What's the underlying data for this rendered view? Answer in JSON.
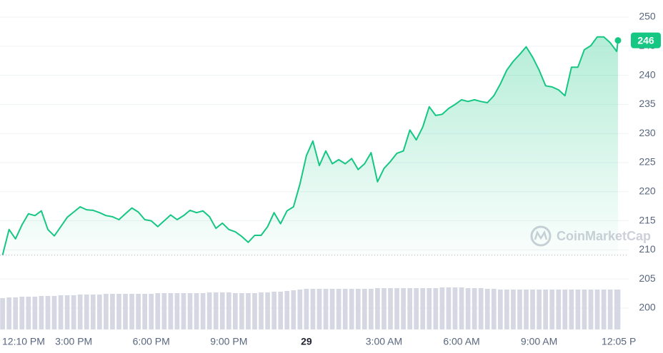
{
  "chart_data": {
    "type": "area",
    "watermark": "CoinMarketCap",
    "x": [
      0.25,
      0.5,
      0.75,
      1.0,
      1.25,
      1.5,
      1.75,
      2.0,
      2.25,
      2.5,
      2.75,
      3.0,
      3.25,
      3.5,
      3.75,
      4.0,
      4.25,
      4.5,
      4.75,
      5.0,
      5.25,
      5.5,
      5.75,
      6.0,
      6.25,
      6.5,
      6.75,
      7.0,
      7.25,
      7.5,
      7.75,
      8.0,
      8.25,
      8.5,
      8.75,
      9.0,
      9.25,
      9.5,
      9.75,
      10.0,
      10.25,
      10.5,
      10.75,
      11.0,
      11.25,
      11.5,
      11.75,
      12.0,
      12.25,
      12.5,
      12.75,
      13.0,
      13.25,
      13.5,
      13.75,
      14.0,
      14.25,
      14.5,
      14.75,
      15.0,
      15.25,
      15.5,
      15.75,
      16.0,
      16.25,
      16.5,
      16.75,
      17.0,
      17.25,
      17.5,
      17.75,
      18.0,
      18.25,
      18.5,
      18.75,
      19.0,
      19.25,
      19.5,
      19.75,
      20.0,
      20.25,
      20.5,
      20.75,
      21.0,
      21.25,
      21.5,
      21.75,
      22.0,
      22.25,
      22.5,
      22.75,
      23.0,
      23.25,
      23.5,
      23.75,
      24.0,
      24.05
    ],
    "series": [
      {
        "color": "#16c784",
        "down_color": "#ea3943",
        "values": [
          209.1,
          213.5,
          211.9,
          214.3,
          216.2,
          215.9,
          216.7,
          213.5,
          212.4,
          214.0,
          215.6,
          216.5,
          217.4,
          216.9,
          216.8,
          216.4,
          215.9,
          215.7,
          215.2,
          216.2,
          217.2,
          216.5,
          215.2,
          215.0,
          214.0,
          215.0,
          216.0,
          215.2,
          215.9,
          216.8,
          216.4,
          216.7,
          215.7,
          213.7,
          214.6,
          213.5,
          213.1,
          212.3,
          211.3,
          212.5,
          212.5,
          214.0,
          216.4,
          214.5,
          216.7,
          217.4,
          221.3,
          226.2,
          228.7,
          224.5,
          227.0,
          224.8,
          225.5,
          224.8,
          225.7,
          223.8,
          224.8,
          226.7,
          221.7,
          224.0,
          225.2,
          226.6,
          227.0,
          230.6,
          228.9,
          231.1,
          234.6,
          233.1,
          233.3,
          234.3,
          235.0,
          235.8,
          235.5,
          235.8,
          235.5,
          235.3,
          236.5,
          238.5,
          240.9,
          242.4,
          243.6,
          244.9,
          243.1,
          240.9,
          238.2,
          238.0,
          237.5,
          236.5,
          241.4,
          241.4,
          244.4,
          245.1,
          246.6,
          246.6,
          245.6,
          244.1,
          246
        ]
      }
    ],
    "volume": [
      44,
      45,
      45,
      46,
      46,
      46,
      47,
      47,
      47,
      48,
      48,
      48,
      49,
      49,
      49,
      49,
      50,
      50,
      50,
      50,
      50,
      50,
      50,
      50,
      51,
      51,
      51,
      51,
      51,
      51,
      51,
      51,
      52,
      52,
      52,
      52,
      51,
      51,
      51,
      51,
      52,
      52,
      53,
      53,
      54,
      55,
      56,
      57,
      57,
      57,
      57,
      57,
      57,
      57,
      57,
      57,
      57,
      57,
      58,
      58,
      58,
      58,
      58,
      58,
      58,
      58,
      58,
      58,
      59,
      59,
      59,
      59,
      58,
      58,
      58,
      57,
      57,
      56,
      56,
      56,
      56,
      56,
      56,
      56,
      56,
      56,
      56,
      56,
      56,
      56,
      56,
      56,
      56,
      56,
      56,
      56,
      56
    ],
    "volume_color": "#d5d8e3",
    "baseline": 209.1,
    "xlim": [
      0.15,
      24.05
    ],
    "xticks": [
      {
        "value": 0.1667,
        "label": "12:10 PM"
      },
      {
        "value": 3,
        "label": "3:00 PM"
      },
      {
        "value": 6,
        "label": "6:00 PM"
      },
      {
        "value": 9,
        "label": "9:00 PM"
      },
      {
        "value": 12,
        "label": "29"
      },
      {
        "value": 15,
        "label": "3:00 AM"
      },
      {
        "value": 18,
        "label": "6:00 AM"
      },
      {
        "value": 21,
        "label": "9:00 AM"
      },
      {
        "value": 24.083,
        "label": "12:05 P"
      }
    ],
    "ylim": [
      200,
      250
    ],
    "yticks": [
      200,
      205,
      210,
      215,
      220,
      225,
      230,
      235,
      240,
      245,
      250
    ],
    "grid": true
  }
}
